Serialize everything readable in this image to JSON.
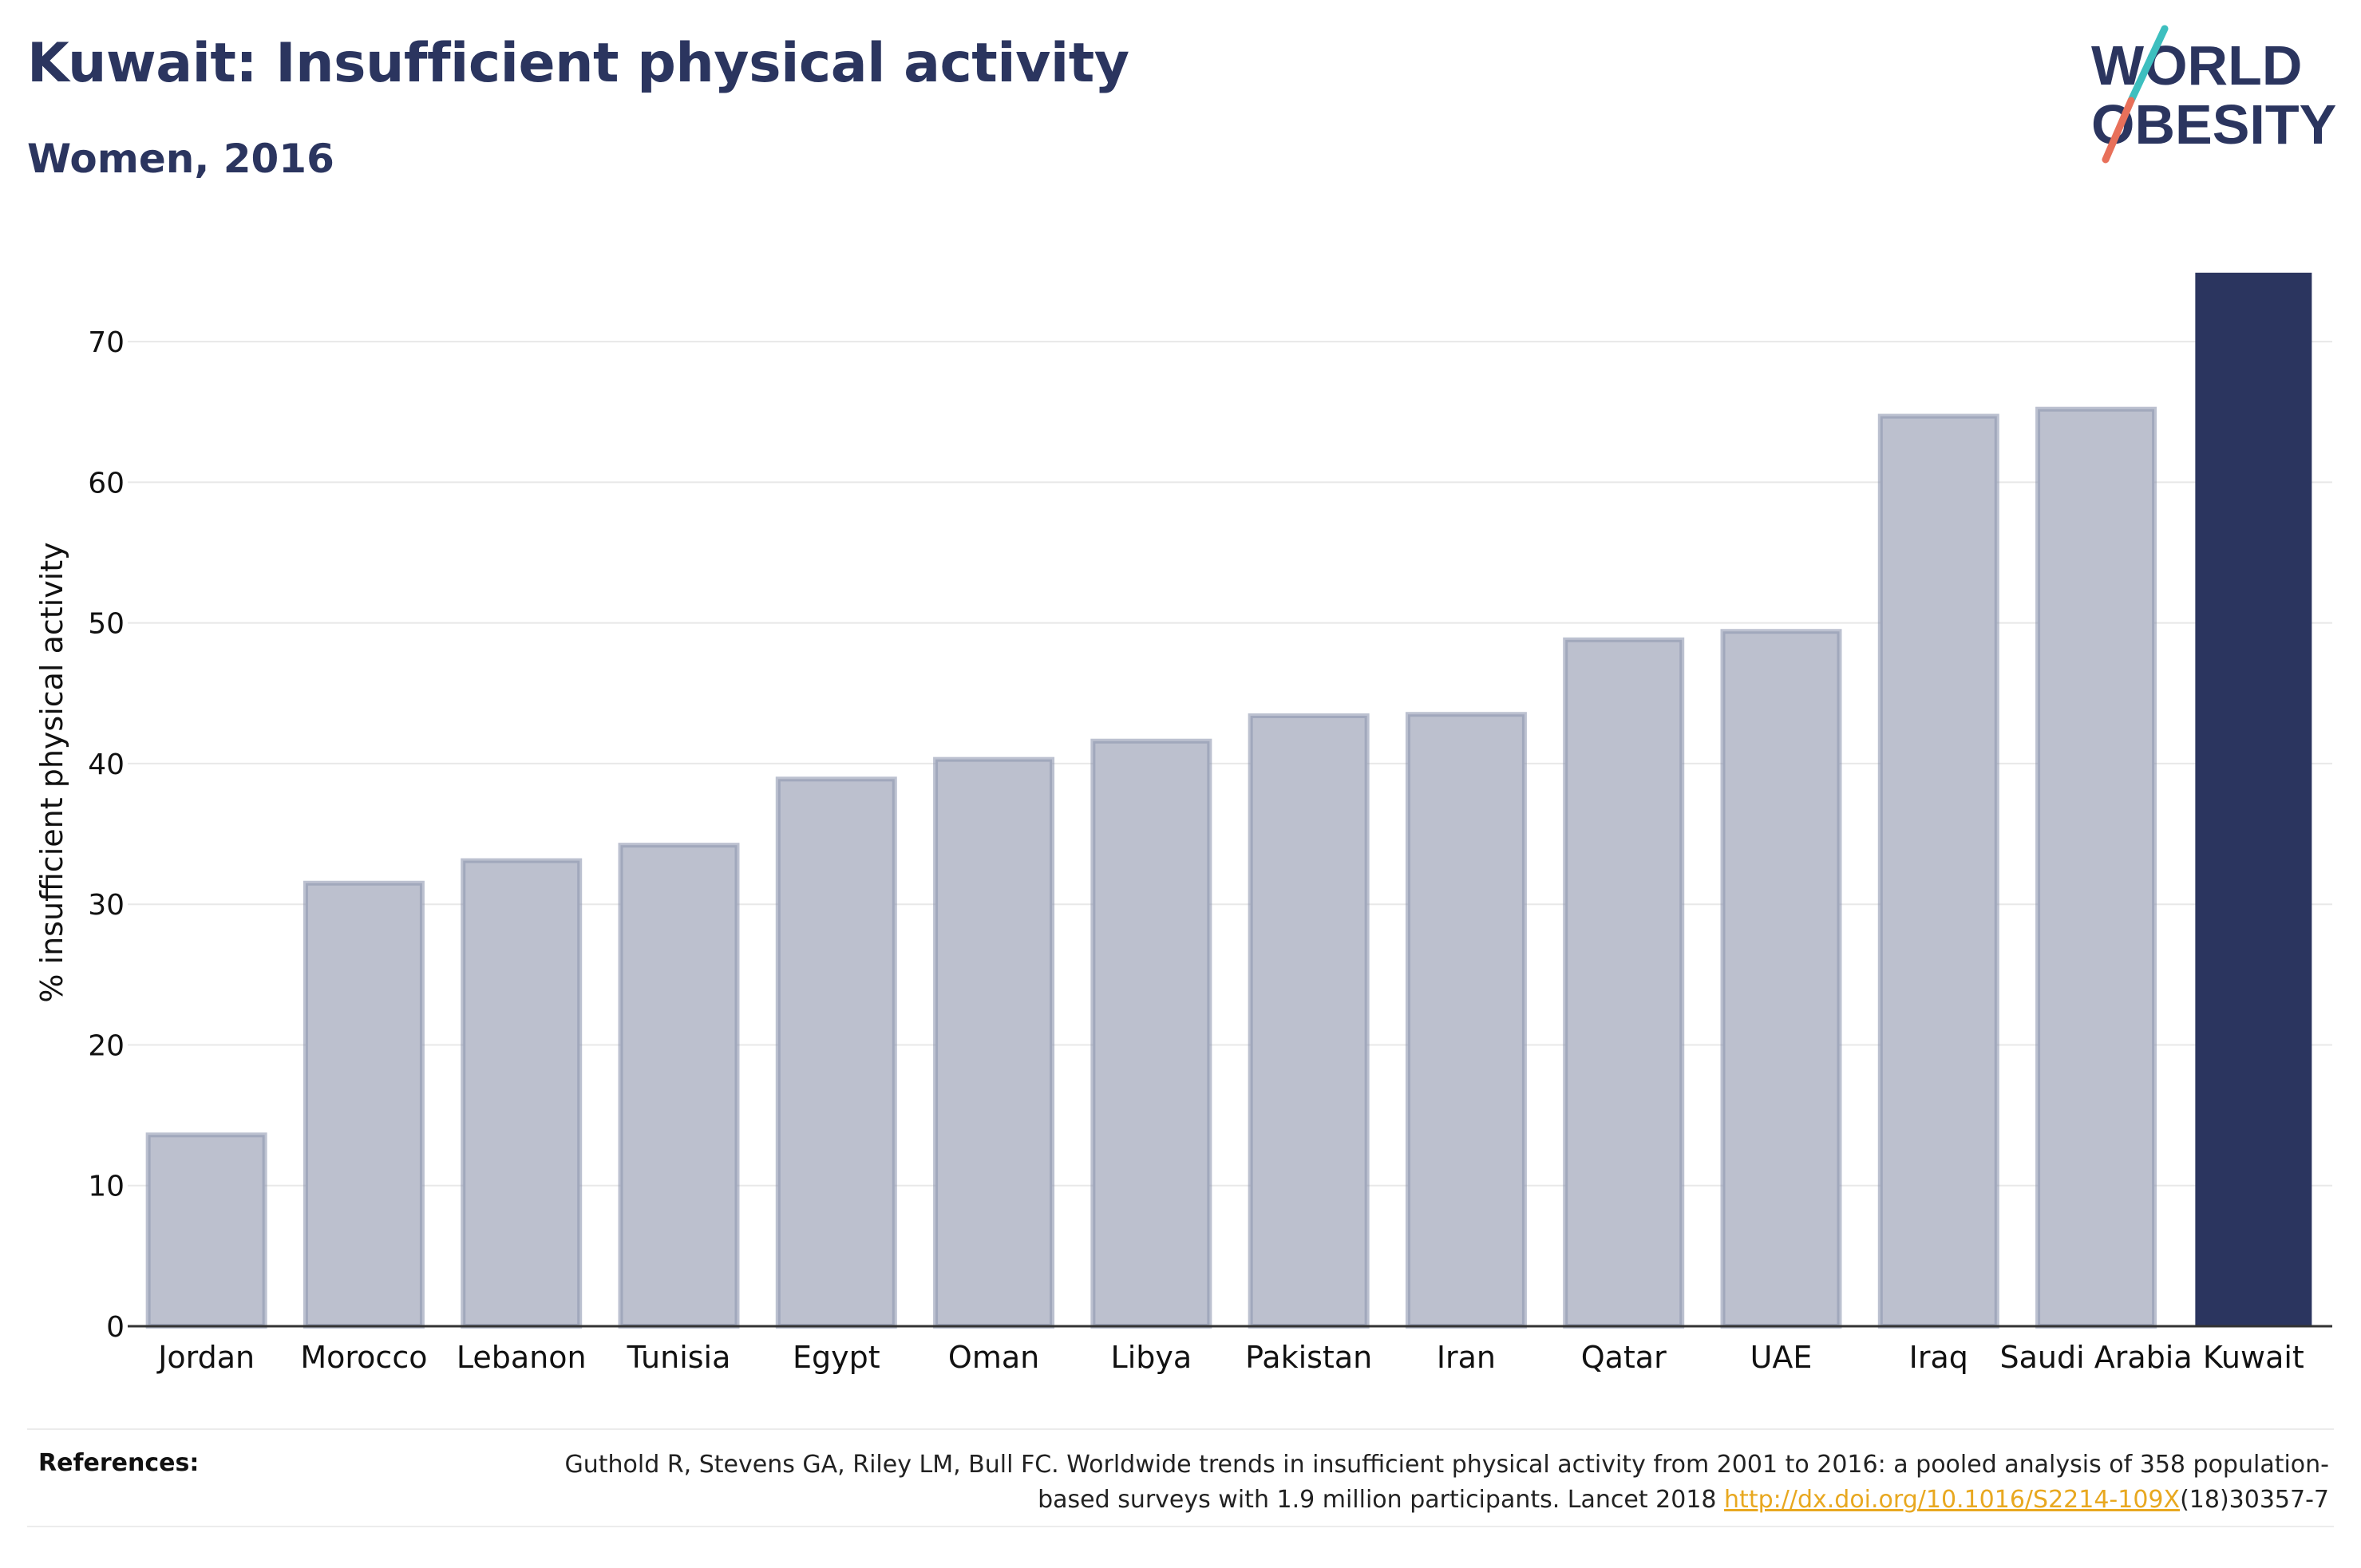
{
  "header": {
    "title": "Kuwait: Insufficient physical activity",
    "subtitle": "Women, 2016"
  },
  "logo": {
    "line1": "WORLD",
    "line2": "OBESITY",
    "colors": {
      "text": "#2b355f",
      "slash_top": "#3dbfbf",
      "slash_bottom": "#e8705a"
    }
  },
  "chart_data": {
    "type": "bar",
    "title": "Kuwait: Insufficient physical activity",
    "subtitle": "Women, 2016",
    "xlabel": "",
    "ylabel": "% insufficient physical activity",
    "categories": [
      "Jordan",
      "Morocco",
      "Lebanon",
      "Tunisia",
      "Egypt",
      "Oman",
      "Libya",
      "Pakistan",
      "Iran",
      "Qatar",
      "UAE",
      "Iraq",
      "Saudi Arabia",
      "Kuwait"
    ],
    "values": [
      13.6,
      31.5,
      33.1,
      34.2,
      38.9,
      40.3,
      41.6,
      43.4,
      43.5,
      48.8,
      49.4,
      64.7,
      65.2,
      74.9
    ],
    "highlight": "Kuwait",
    "ylim": [
      0,
      75
    ],
    "yticks": [
      0,
      10,
      20,
      30,
      40,
      50,
      60,
      70
    ],
    "grid": true,
    "colors": {
      "bar": "#bcc0ce",
      "bar_outline": "#9097b0",
      "highlight": "#2b355f",
      "grid": "#e8e8e8",
      "axis": "#333333"
    }
  },
  "references": {
    "label": "References:",
    "text_before": "Guthold R, Stevens GA, Riley LM, Bull FC. Worldwide trends in insufficient physical activity from 2001 to 2016: a pooled analysis of 358 population-based surveys with 1.9 million participants. Lancet 2018 ",
    "link": "http://dx.doi.org/10.1016/S2214-109X",
    "text_after": "(18)30357-7"
  }
}
